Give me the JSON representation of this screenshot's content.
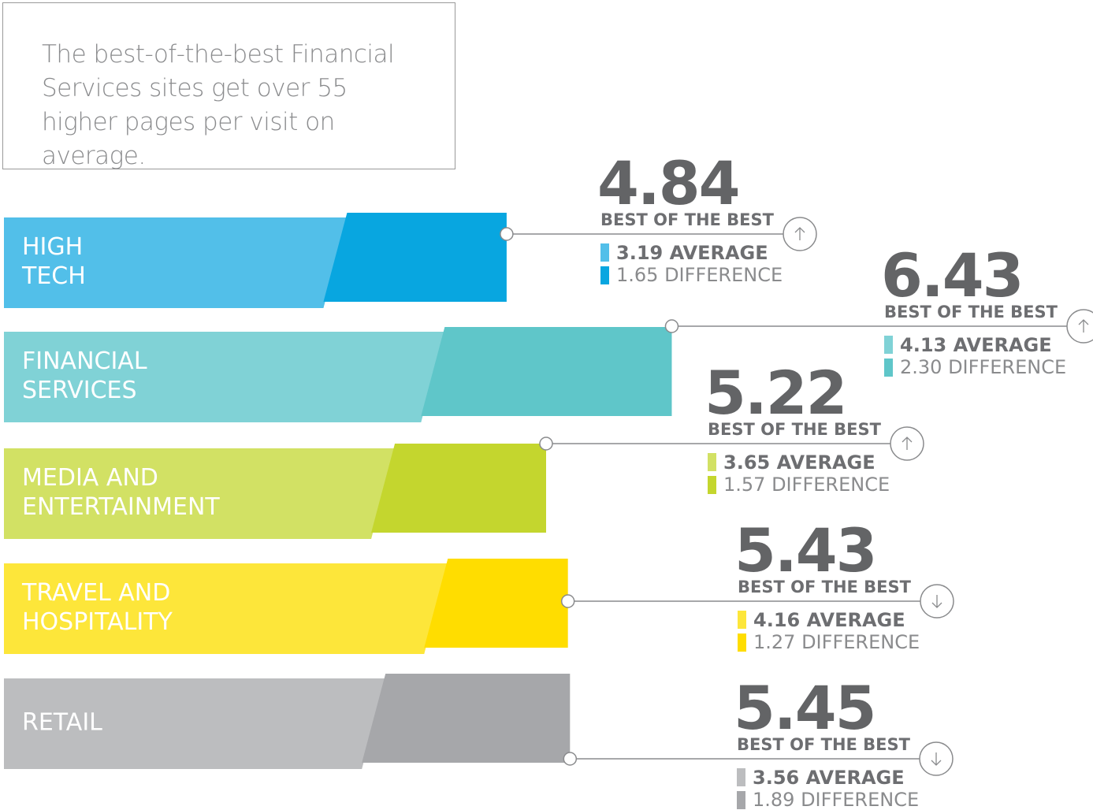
{
  "chart_data": {
    "type": "stacked-bar",
    "title": "The best-of-the-best Financial Services sites get over 55 higher pages per visit on average.",
    "categories": [
      [
        "HIGH",
        "TECH"
      ],
      [
        "FINANCIAL",
        "SERVICES"
      ],
      [
        "MEDIA AND",
        "ENTERTAINMENT"
      ],
      [
        "TRAVEL AND",
        "HOSPITALITY"
      ],
      [
        "RETAIL"
      ]
    ],
    "total_label": "BEST OF THE BEST",
    "totals": [
      4.84,
      6.43,
      5.22,
      5.43,
      5.45
    ],
    "directions": [
      "up",
      "up",
      "up",
      "down",
      "down"
    ],
    "series": [
      {
        "name": "AVERAGE",
        "values": [
          3.19,
          4.13,
          3.65,
          4.16,
          3.56
        ],
        "value_labels": [
          "3.19",
          "4.13",
          "3.65",
          "4.16",
          "3.56"
        ],
        "color": [
          "#52bfe9",
          "#80d2d6",
          "#d2e164",
          "#fde63a",
          "#bcbdbf"
        ]
      },
      {
        "name": "DIFFERENCE",
        "values": [
          1.65,
          2.3,
          1.57,
          1.27,
          1.89
        ],
        "value_labels": [
          "1.65",
          "2.30",
          "1.57",
          "1.27",
          "1.89"
        ],
        "color": [
          "#08a6e0",
          "#5fc6c9",
          "#c4d62e",
          "#ffdd00",
          "#a6a7aa"
        ]
      }
    ]
  }
}
